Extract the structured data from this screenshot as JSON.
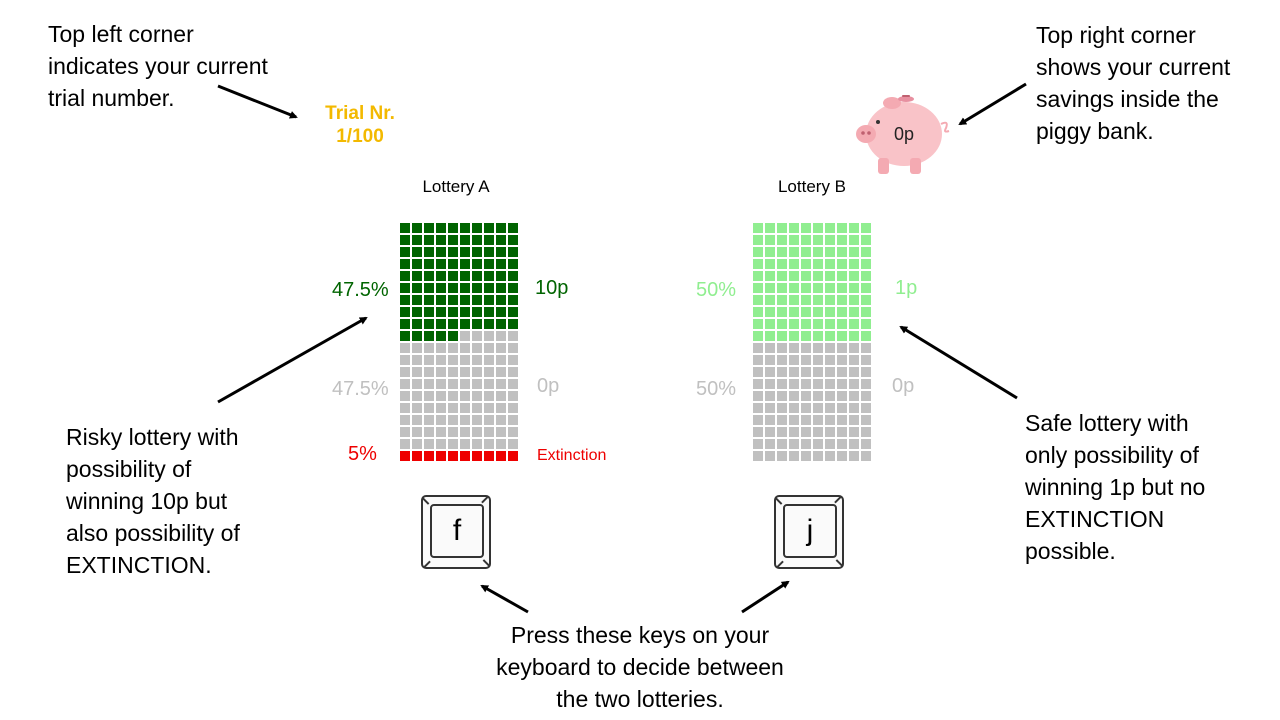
{
  "header": {
    "trial_label": "Trial Nr.\n1/100",
    "piggy_amount": "0p"
  },
  "annotations": {
    "trial": "Top left corner\nindicates your current\ntrial number.",
    "savings": "Top right corner\nshows your current\nsavings inside the\npiggy bank.",
    "risky": "Risky lottery with\npossibility of\nwinning 10p but\nalso possibility of\nEXTINCTION.",
    "safe": "Safe lottery with\nonly possibility of\nwinning 1p but no\nEXTINCTION\npossible.",
    "keys": "Press these keys on your\nkeyboard to decide between\nthe two lotteries."
  },
  "lottery_a": {
    "title": "Lottery A",
    "win_pct": "47.5%",
    "win_prize": "10p",
    "zero_pct": "47.5%",
    "zero_prize": "0p",
    "extinction_pct": "5%",
    "extinction_label": "Extinction",
    "cells": {
      "win": 95,
      "zero": 95,
      "extinction": 10
    },
    "key": "f"
  },
  "lottery_b": {
    "title": "Lottery B",
    "win_pct": "50%",
    "win_prize": "1p",
    "zero_pct": "50%",
    "zero_prize": "0p",
    "cells": {
      "win": 100,
      "zero": 100,
      "extinction": 0
    },
    "key": "j"
  },
  "colors": {
    "trial": "#f3b900",
    "risky_win": "#006400",
    "safe_win": "#90ee90",
    "zero": "#c0c0c0",
    "extinction": "#ee0000",
    "piggy": "#f9c3c8"
  }
}
